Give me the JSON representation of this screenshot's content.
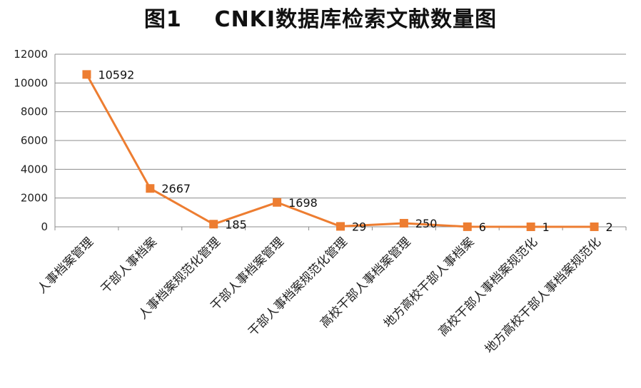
{
  "chart_data": {
    "type": "line",
    "title": "图1    CNKI数据库检索文献数量图",
    "categories": [
      "人事档案管理",
      "干部人事档案",
      "人事档案规范化管理",
      "干部人事档案管理",
      "干部人事档案规范化管理",
      "高校干部人事档案管理",
      "地方高校干部人事档案",
      "高校干部人事档案规范化",
      "地方高校干部人事档案规范化"
    ],
    "series": [
      {
        "values": [
          10592,
          2667,
          185,
          1698,
          29,
          250,
          6,
          1,
          2
        ],
        "color": "#ED7D31"
      }
    ],
    "yticks": [
      "0",
      "2000",
      "4000",
      "6000",
      "8000",
      "10000",
      "12000"
    ],
    "ylim": [
      0,
      12000
    ],
    "grid": true,
    "legend": "none",
    "marker": "square"
  }
}
